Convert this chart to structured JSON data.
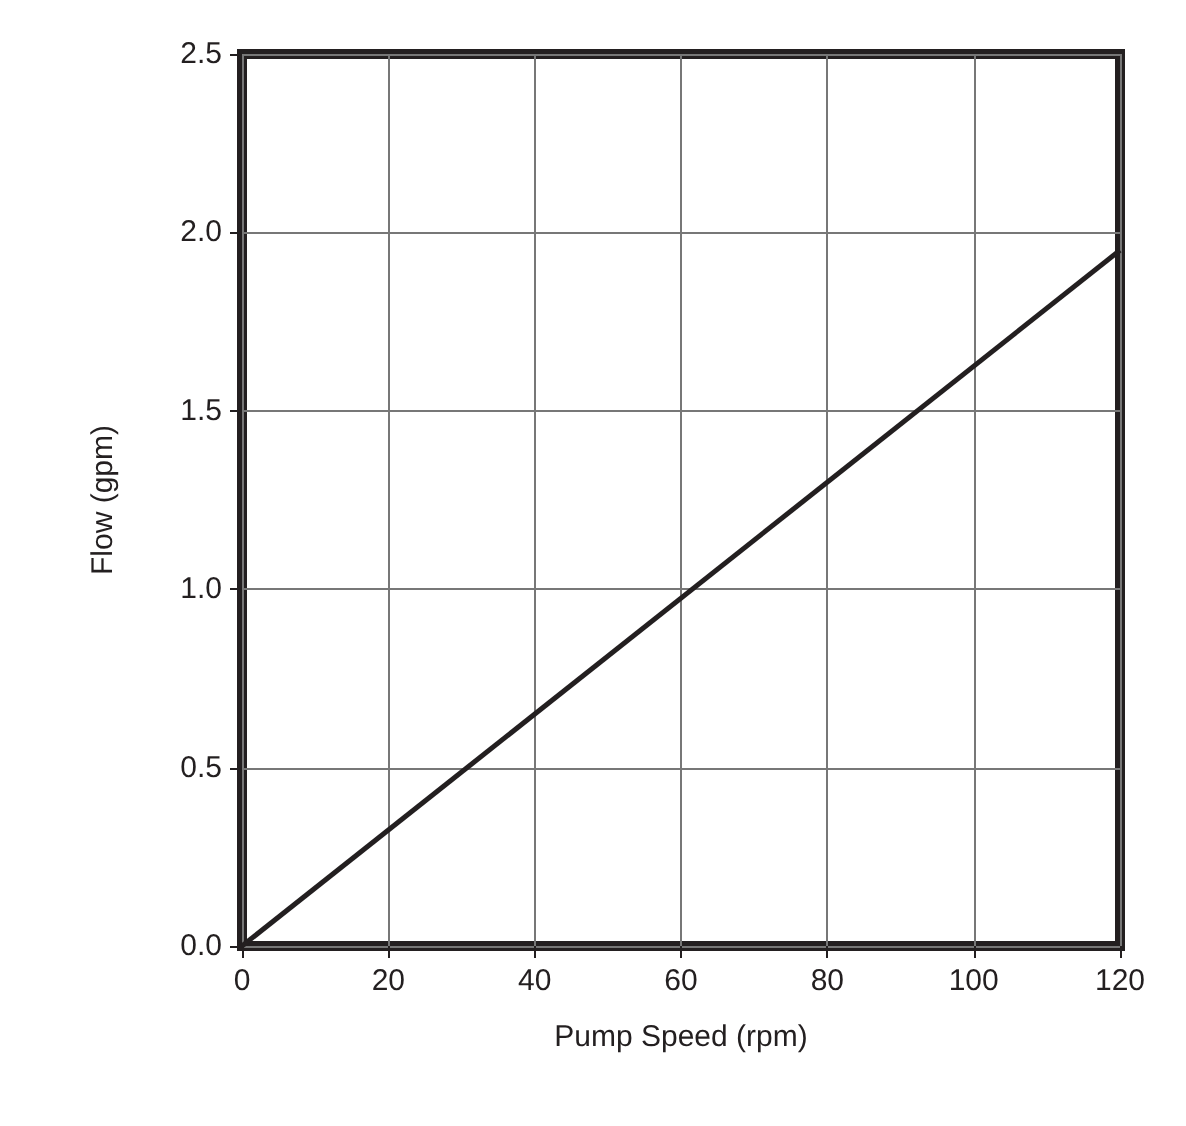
{
  "chart_data": {
    "type": "line",
    "xlabel": "Pump Speed (rpm)",
    "ylabel": "Flow (gpm)",
    "x": [
      0,
      120
    ],
    "series": [
      {
        "color": "#231f20",
        "values": [
          0,
          1.95
        ]
      }
    ],
    "xlim": [
      0,
      120
    ],
    "xticks": [
      0,
      20,
      40,
      60,
      80,
      100,
      120
    ],
    "ylim": [
      0,
      2.5
    ],
    "yticks": [
      {
        "value": 0,
        "label": "0.0"
      },
      {
        "value": 0.5,
        "label": "0.5"
      },
      {
        "value": 1,
        "label": "1.0"
      },
      {
        "value": 1.5,
        "label": "1.5"
      },
      {
        "value": 2,
        "label": "2.0"
      },
      {
        "value": 2.5,
        "label": "2.5"
      }
    ],
    "grid": true
  }
}
